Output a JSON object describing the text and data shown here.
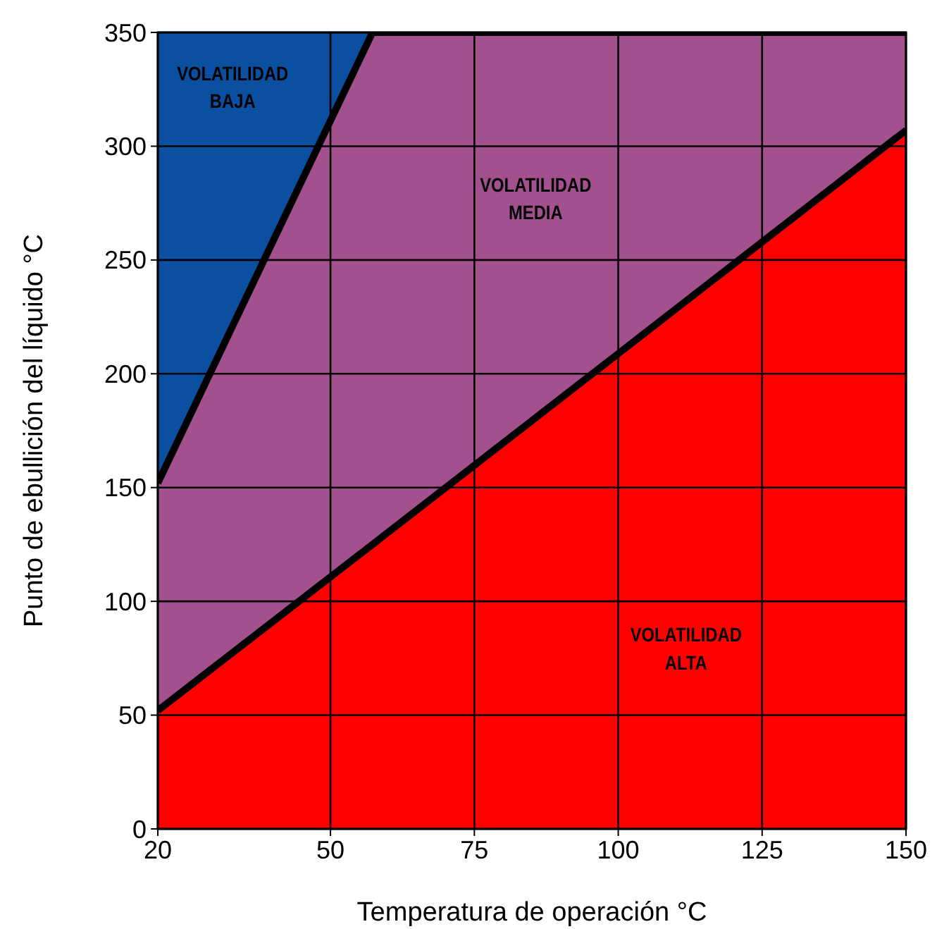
{
  "chart_data": {
    "type": "area",
    "xlabel": "Temperatura de operación °C",
    "ylabel": "Punto de ebullición del líquido °C",
    "x": [
      20,
      57.3,
      150
    ],
    "stacked": true,
    "series": [
      {
        "color": "#ff0000",
        "values": [
          52,
          125,
          307
        ]
      },
      {
        "color": "#a3508f",
        "values": [
          100,
          225,
          43
        ]
      },
      {
        "color": "#0a4fa0",
        "values": [
          198,
          0,
          0
        ]
      }
    ],
    "xlim": [
      20,
      150
    ],
    "xticks": [
      20,
      50,
      75,
      100,
      125,
      150
    ],
    "ylim": [
      0,
      350
    ],
    "yticks": [
      0,
      50,
      100,
      150,
      200,
      250,
      300,
      350
    ],
    "grid": true,
    "annotations": [
      "VOLATILIDAD BAJA",
      "VOLATILIDAD MEDIA",
      "VOLATILIDAD ALTA"
    ]
  }
}
